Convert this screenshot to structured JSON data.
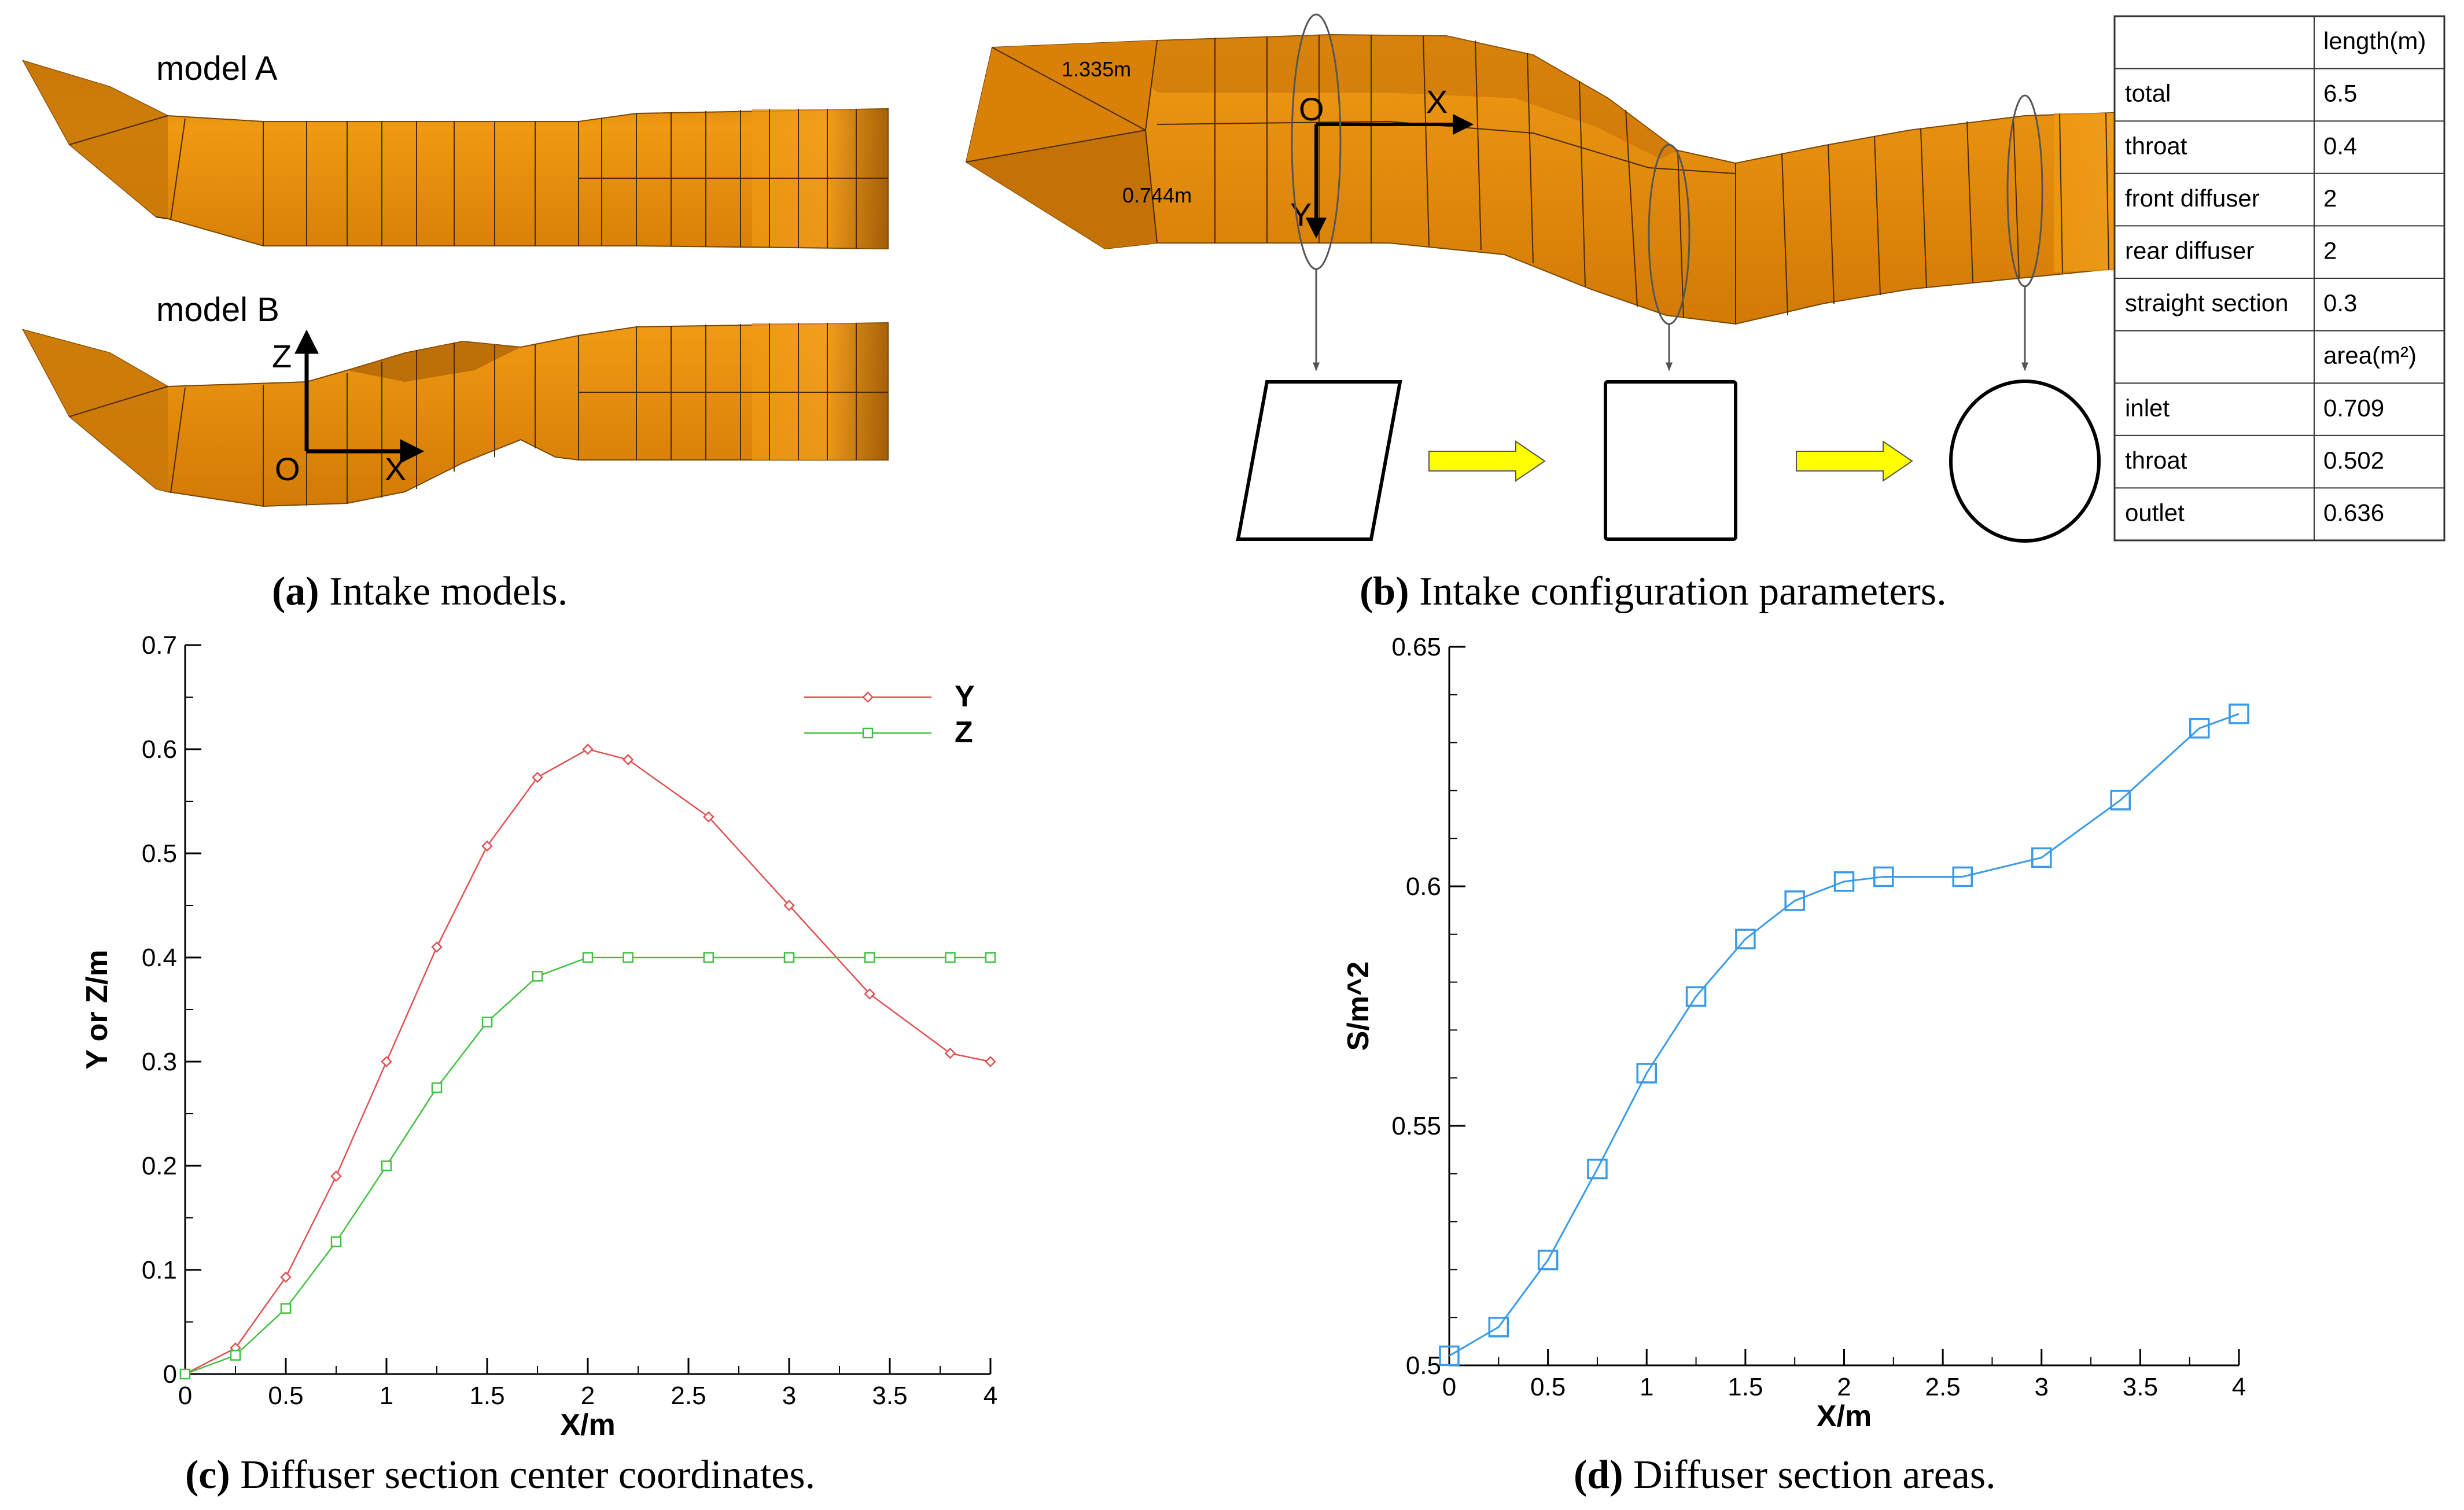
{
  "panel_a": {
    "model_a_label": "model A",
    "model_b_label": "model B",
    "axis_z": "Z",
    "axis_x": "X",
    "origin": "O",
    "caption_label": "(a)",
    "caption_text": " Intake models."
  },
  "panel_b": {
    "dim_top": "1.335m",
    "dim_side": "0.744m",
    "origin": "O",
    "axis_x": "X",
    "axis_y": "Y",
    "caption_label": "(b)",
    "caption_text": " Intake configuration parameters.",
    "table": {
      "rows": [
        {
          "name": "",
          "value": "length(m)"
        },
        {
          "name": "total",
          "value": "6.5"
        },
        {
          "name": "throat",
          "value": "0.4"
        },
        {
          "name": "front diffuser",
          "value": "2"
        },
        {
          "name": "rear diffuser",
          "value": "2"
        },
        {
          "name": "straight section",
          "value": "0.3"
        },
        {
          "name": "",
          "value": "area(m²)"
        },
        {
          "name": "inlet",
          "value": "0.709"
        },
        {
          "name": "throat",
          "value": "0.502"
        },
        {
          "name": "outlet",
          "value": "0.636"
        }
      ]
    }
  },
  "panel_c": {
    "caption_label": "(c)",
    "caption_text": " Diffuser section center coordinates."
  },
  "panel_d": {
    "caption_label": "(d)",
    "caption_text": " Diffuser section areas."
  },
  "colors": {
    "duct": "#e8890a",
    "duct_dark": "#a85f05",
    "series_y": "#e05050",
    "series_z": "#40c040",
    "series_s": "#3a9ae8",
    "arrow_fill": "#ffff00"
  },
  "chart_data": [
    {
      "type": "line",
      "xlabel": "X/m",
      "ylabel": "Y or Z/m",
      "xlim": [
        0,
        4
      ],
      "ylim": [
        0,
        0.7
      ],
      "xticks": [
        "0",
        "0.5",
        "1",
        "1.5",
        "2",
        "2.5",
        "3",
        "3.5",
        "4"
      ],
      "yticks": [
        "0",
        "0.1",
        "0.2",
        "0.3",
        "0.4",
        "0.5",
        "0.6",
        "0.7"
      ],
      "legend_position": "top-right",
      "grid": false,
      "series": [
        {
          "name": "Y",
          "marker": "diamond",
          "x": [
            0,
            0.25,
            0.5,
            0.75,
            1,
            1.25,
            1.5,
            1.75,
            2,
            2.2,
            2.6,
            3,
            3.4,
            3.8,
            4
          ],
          "y": [
            0,
            0.025,
            0.093,
            0.19,
            0.3,
            0.41,
            0.507,
            0.573,
            0.6,
            0.59,
            0.535,
            0.45,
            0.365,
            0.308,
            0.3
          ]
        },
        {
          "name": "Z",
          "marker": "square",
          "x": [
            0,
            0.25,
            0.5,
            0.75,
            1,
            1.25,
            1.5,
            1.75,
            2,
            2.2,
            2.6,
            3,
            3.4,
            3.8,
            4
          ],
          "y": [
            0,
            0.018,
            0.063,
            0.127,
            0.2,
            0.275,
            0.338,
            0.382,
            0.4,
            0.4,
            0.4,
            0.4,
            0.4,
            0.4,
            0.4
          ]
        }
      ]
    },
    {
      "type": "line",
      "xlabel": "X/m",
      "ylabel": "S/m^2",
      "xlim": [
        0,
        4
      ],
      "ylim": [
        0.5,
        0.65
      ],
      "xticks": [
        "0",
        "0.5",
        "1",
        "1.5",
        "2",
        "2.5",
        "3",
        "3.5",
        "4"
      ],
      "yticks": [
        "0.5",
        "0.55",
        "0.6",
        "0.65"
      ],
      "grid": false,
      "series": [
        {
          "marker": "square",
          "x": [
            0,
            0.25,
            0.5,
            0.75,
            1,
            1.25,
            1.5,
            1.75,
            2,
            2.2,
            2.6,
            3,
            3.4,
            3.8,
            4
          ],
          "y": [
            0.502,
            0.508,
            0.522,
            0.541,
            0.561,
            0.577,
            0.589,
            0.597,
            0.601,
            0.602,
            0.602,
            0.606,
            0.618,
            0.633,
            0.636
          ]
        }
      ]
    }
  ]
}
